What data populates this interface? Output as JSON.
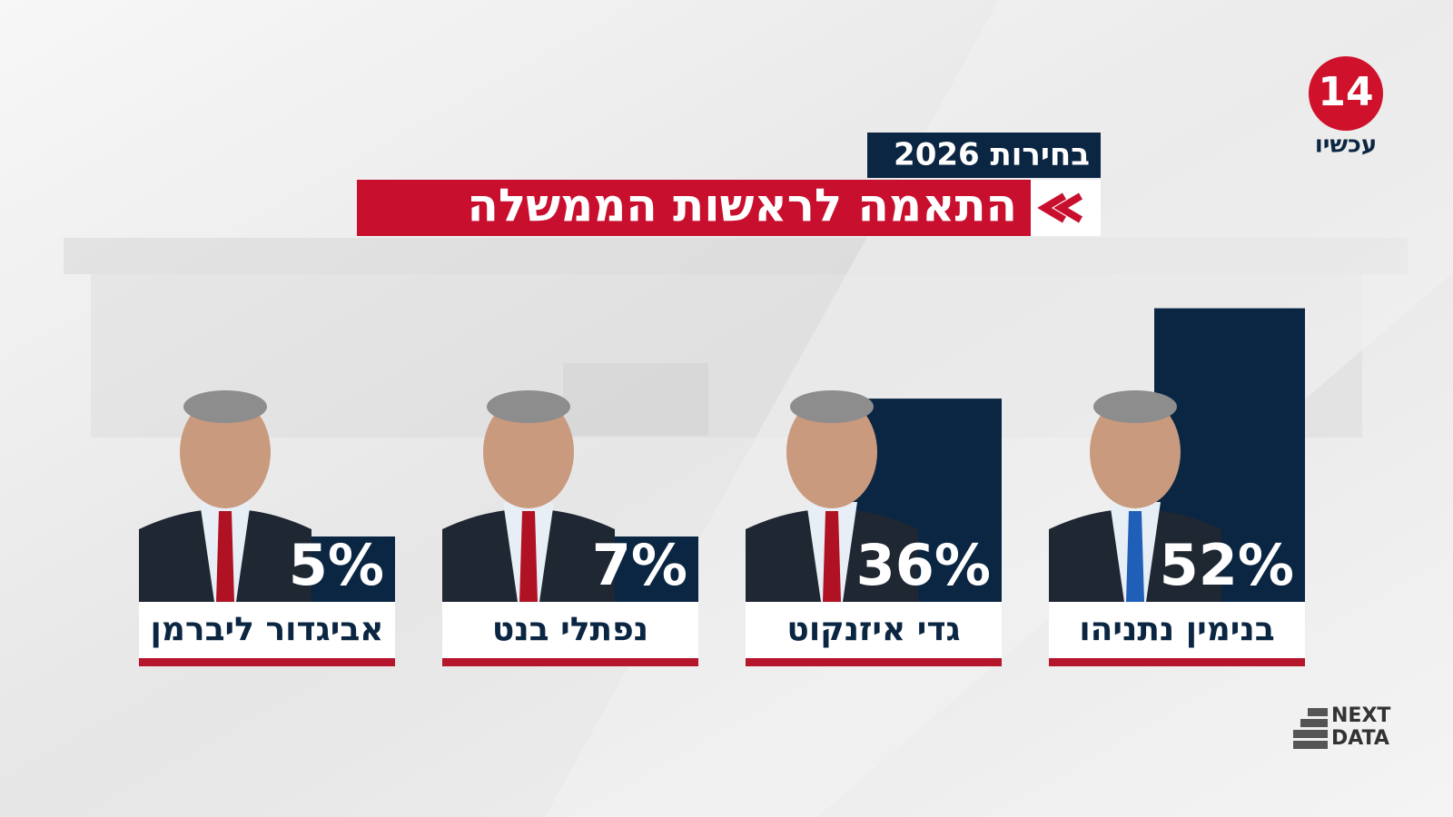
{
  "chart_data": {
    "type": "bar",
    "title": "התאמה לראשות הממשלה",
    "subtitle": "בחירות 2026",
    "categories": [
      "בנימין נתניהו",
      "גדי איזנקוט",
      "נפתלי בנט",
      "אביגדור ליברמן"
    ],
    "values": [
      52,
      36,
      7,
      5
    ],
    "value_labels": [
      "52%",
      "36%",
      "7%",
      "5%"
    ],
    "color": "#0b2643",
    "annotations": [
      "14",
      "עכשיו",
      "NEXT",
      "DATA"
    ]
  }
}
